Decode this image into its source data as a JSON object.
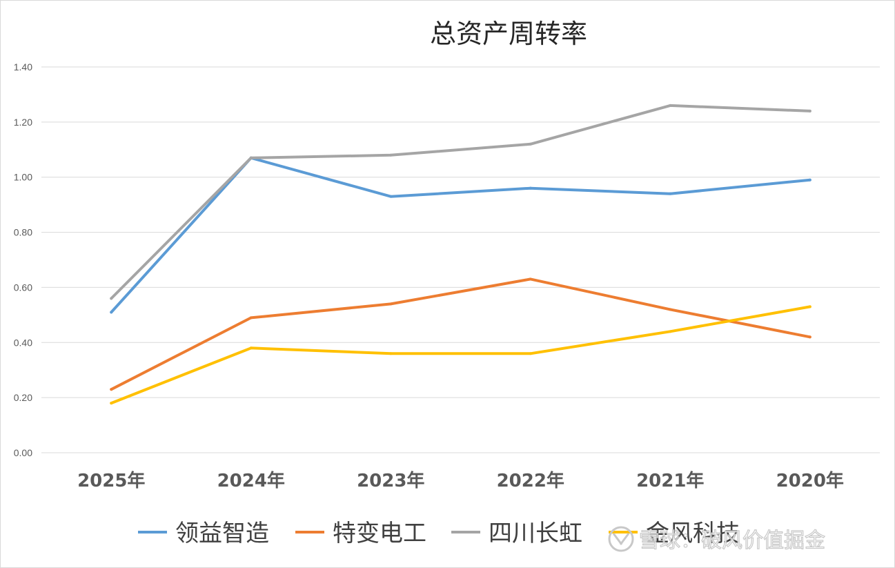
{
  "chart_data": {
    "type": "line",
    "title": "总资产周转率",
    "categories": [
      "2025年",
      "2024年",
      "2023年",
      "2022年",
      "2021年",
      "2020年"
    ],
    "y_ticks": [
      "0.00",
      "0.20",
      "0.40",
      "0.60",
      "0.80",
      "1.00",
      "1.20",
      "1.40"
    ],
    "ylim": [
      0,
      1.4
    ],
    "grid": true,
    "legend_position": "bottom",
    "series": [
      {
        "name": "领益智造",
        "color": "#5b9bd5",
        "values": [
          0.51,
          1.07,
          0.93,
          0.96,
          0.94,
          0.99
        ]
      },
      {
        "name": "特变电工",
        "color": "#ed7d31",
        "values": [
          0.23,
          0.49,
          0.54,
          0.63,
          0.52,
          0.42
        ]
      },
      {
        "name": "四川长虹",
        "color": "#a5a5a5",
        "values": [
          0.56,
          1.07,
          1.08,
          1.12,
          1.26,
          1.24
        ]
      },
      {
        "name": "金风科技",
        "color": "#ffc000",
        "values": [
          0.18,
          0.38,
          0.36,
          0.36,
          0.44,
          0.53
        ]
      }
    ]
  },
  "watermark": {
    "text": "雪球：破风价值掘金",
    "icon": "snowball-logo-icon"
  }
}
